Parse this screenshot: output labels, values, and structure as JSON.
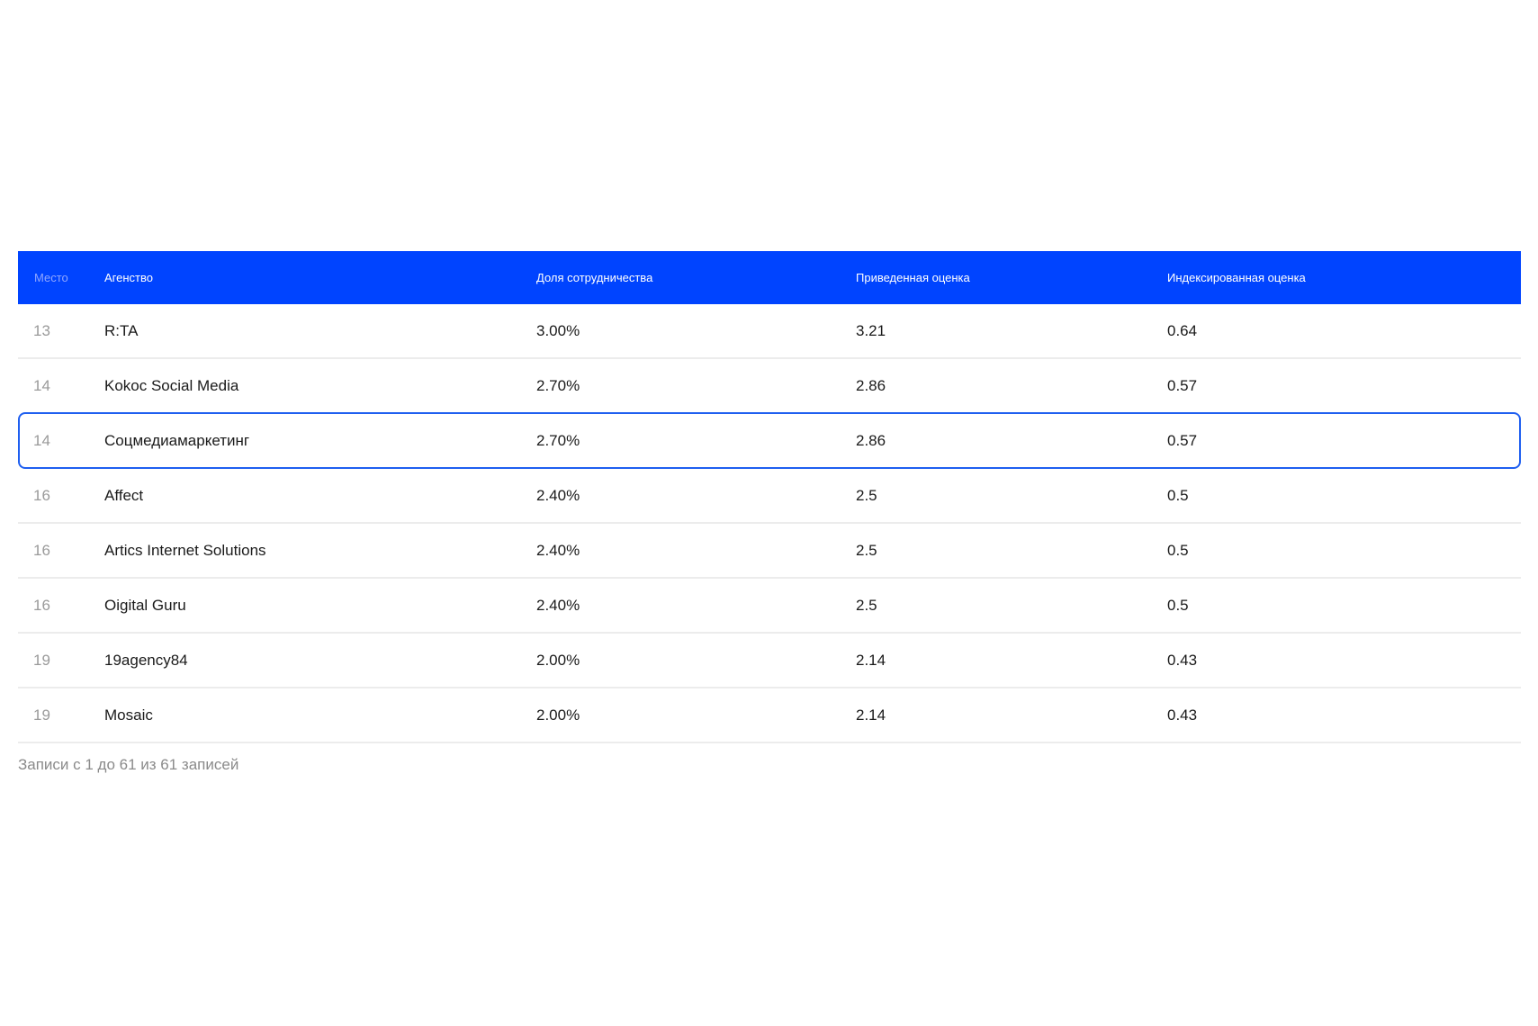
{
  "table": {
    "headers": {
      "place": "Место",
      "agency": "Агенство",
      "share": "Доля сотрудничества",
      "score": "Приведенная оценка",
      "index": "Индексированная оценка"
    },
    "rows": [
      {
        "place": "13",
        "agency": "R:TA",
        "share": "3.00%",
        "score": "3.21",
        "index": "0.64"
      },
      {
        "place": "14",
        "agency": "Kokoc Social Media",
        "share": "2.70%",
        "score": "2.86",
        "index": "0.57"
      },
      {
        "place": "14",
        "agency": "Соцмедиамаркетинг",
        "share": "2.70%",
        "score": "2.86",
        "index": "0.57"
      },
      {
        "place": "16",
        "agency": "Affect",
        "share": "2.40%",
        "score": "2.5",
        "index": "0.5"
      },
      {
        "place": "16",
        "agency": "Artics Internet Solutions",
        "share": "2.40%",
        "score": "2.5",
        "index": "0.5"
      },
      {
        "place": "16",
        "agency": "Oigital Guru",
        "share": "2.40%",
        "score": "2.5",
        "index": "0.5"
      },
      {
        "place": "19",
        "agency": "19agency84",
        "share": "2.00%",
        "score": "2.14",
        "index": "0.43"
      },
      {
        "place": "19",
        "agency": "Mosaic",
        "share": "2.00%",
        "score": "2.14",
        "index": "0.43"
      }
    ],
    "highlight_color": "#1f5ff0",
    "header_color": "#0044ff"
  },
  "footer": {
    "info": "Записи с 1 до 61 из 61 записей"
  }
}
